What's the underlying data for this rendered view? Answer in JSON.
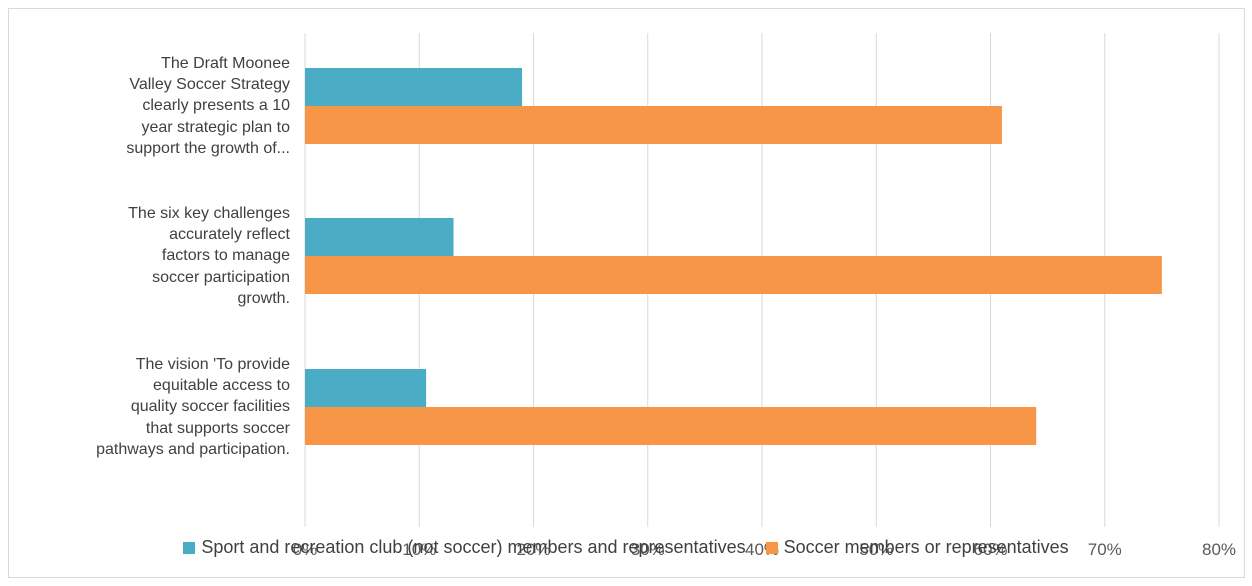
{
  "chart_data": {
    "type": "bar",
    "orientation": "horizontal",
    "categories": [
      "The Draft Moonee Valley Soccer Strategy clearly presents a 10 year strategic plan to support the growth of...",
      "The six key challenges accurately reflect factors to manage soccer participation growth.",
      "The vision 'To provide equitable access to quality soccer facilities that supports soccer pathways and participation."
    ],
    "category_lines": [
      [
        "The Draft Moonee",
        "Valley Soccer Strategy",
        "clearly presents a 10",
        "year strategic plan to",
        "support the growth of..."
      ],
      [
        "The six key challenges",
        "accurately reflect",
        "factors to manage",
        "soccer participation",
        "growth."
      ],
      [
        "The vision 'To provide",
        "equitable access to",
        "quality soccer facilities",
        "that supports soccer",
        "pathways and participation."
      ]
    ],
    "series": [
      {
        "name": "Sport and recreation club (not soccer) members and representatives",
        "values": [
          19,
          13,
          10.6
        ],
        "color": "#4bacc6"
      },
      {
        "name": "Soccer members or representatives",
        "values": [
          61,
          75,
          64
        ],
        "color": "#f79646"
      }
    ],
    "xlim": [
      0,
      80
    ],
    "x_ticks": [
      "0%",
      "10%",
      "20%",
      "30%",
      "40%",
      "50%",
      "60%",
      "70%",
      "80%"
    ],
    "grid": true,
    "legend_position": "bottom"
  }
}
